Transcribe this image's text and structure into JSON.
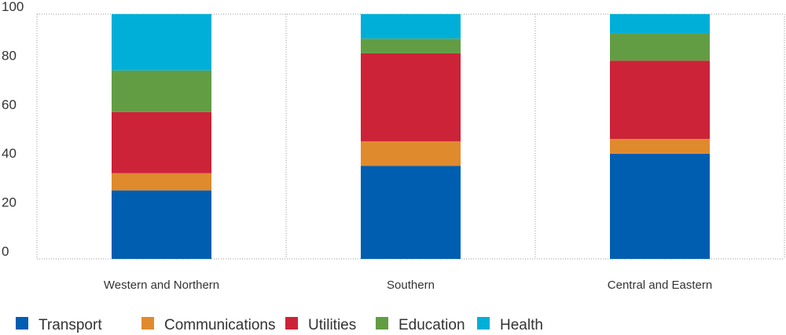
{
  "chart_data": {
    "type": "bar",
    "stacked": true,
    "categories": [
      "Western and Northern",
      "Southern",
      "Central and Eastern"
    ],
    "series": [
      {
        "name": "Transport",
        "color": "#005eb0",
        "values": [
          28,
          38,
          43
        ]
      },
      {
        "name": "Communications",
        "color": "#e08a2e",
        "values": [
          7,
          10,
          6
        ]
      },
      {
        "name": "Utilities",
        "color": "#cc2339",
        "values": [
          25,
          36,
          32
        ]
      },
      {
        "name": "Education",
        "color": "#629d44",
        "values": [
          17,
          6,
          11
        ]
      },
      {
        "name": "Health",
        "color": "#00afd8",
        "values": [
          23,
          10,
          8
        ]
      }
    ],
    "ylim": [
      0,
      100
    ],
    "yticks": [
      "0",
      "20",
      "40",
      "60",
      "80",
      "100"
    ],
    "grid": "dotted vertical separators",
    "legend": "bottom"
  }
}
